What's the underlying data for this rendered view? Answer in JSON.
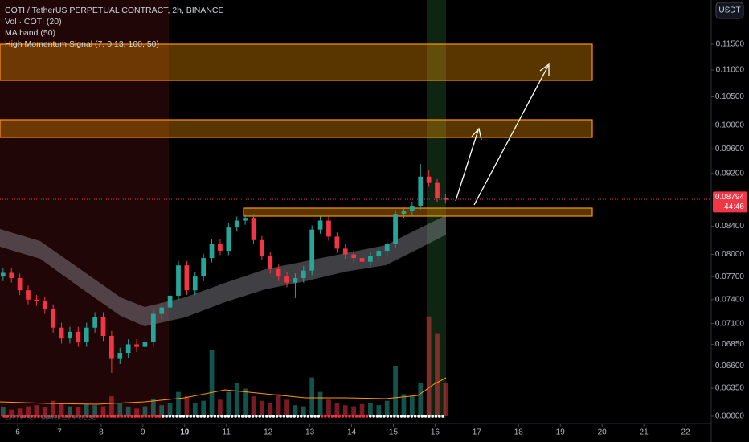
{
  "chart_data": {
    "type": "candlestick",
    "title": "COTI / TetherUS PERPETUAL CONTRACT, 2h, BINANCE",
    "indicators": [
      "Vol · COTI (20)",
      "MA band (50)",
      "High Momentum Signal (7, 0.13, 100, 50)"
    ],
    "currency_button": "USDT",
    "watermark": "CRYPTO · MARKET PULSE",
    "log_scale": true,
    "grid": false,
    "up_color": "#26a69a",
    "down_color": "#f23645",
    "x": [
      5.65,
      5.85,
      6.05,
      6.25,
      6.45,
      6.65,
      6.85,
      7.05,
      7.25,
      7.45,
      7.65,
      7.85,
      8.05,
      8.25,
      8.45,
      8.65,
      8.85,
      9.05,
      9.25,
      9.45,
      9.65,
      9.85,
      10.05,
      10.25,
      10.45,
      10.65,
      10.85,
      11.05,
      11.25,
      11.45,
      11.65,
      11.85,
      12.05,
      12.25,
      12.45,
      12.65,
      12.85,
      13.05,
      13.25,
      13.45,
      13.65,
      13.85,
      14.05,
      14.25,
      14.45,
      14.65,
      14.85,
      15.05,
      15.25,
      15.45,
      15.65,
      15.85,
      16.05,
      16.25
    ],
    "open": [
      0.077,
      0.0775,
      0.0768,
      0.0752,
      0.074,
      0.0738,
      0.0728,
      0.0705,
      0.0692,
      0.07,
      0.0688,
      0.0705,
      0.0718,
      0.0695,
      0.0668,
      0.0675,
      0.0685,
      0.0682,
      0.0688,
      0.0722,
      0.073,
      0.0745,
      0.0785,
      0.0752,
      0.077,
      0.0795,
      0.0815,
      0.0805,
      0.0838,
      0.0848,
      0.0852,
      0.082,
      0.0798,
      0.078,
      0.077,
      0.0762,
      0.0768,
      0.0778,
      0.0835,
      0.0848,
      0.0825,
      0.0808,
      0.08,
      0.0795,
      0.079,
      0.0798,
      0.0805,
      0.0815,
      0.0858,
      0.0862,
      0.087,
      0.0915,
      0.0905,
      0.0882
    ],
    "high": [
      0.0781,
      0.0781,
      0.0774,
      0.0758,
      0.0746,
      0.0744,
      0.0734,
      0.0711,
      0.0706,
      0.0706,
      0.0711,
      0.0724,
      0.0724,
      0.0701,
      0.0681,
      0.0691,
      0.0691,
      0.0694,
      0.0728,
      0.0736,
      0.0751,
      0.0791,
      0.0791,
      0.0776,
      0.0801,
      0.0821,
      0.0821,
      0.0844,
      0.0854,
      0.0858,
      0.0858,
      0.0826,
      0.0804,
      0.0786,
      0.0776,
      0.0774,
      0.0784,
      0.0841,
      0.0854,
      0.0854,
      0.0831,
      0.0814,
      0.0806,
      0.0801,
      0.0804,
      0.0811,
      0.0821,
      0.0864,
      0.0868,
      0.0876,
      0.0935,
      0.0925,
      0.0911,
      0.0888
    ],
    "low": [
      0.0764,
      0.0762,
      0.0746,
      0.0734,
      0.0732,
      0.0722,
      0.0699,
      0.0686,
      0.0686,
      0.0682,
      0.0682,
      0.0699,
      0.0689,
      0.0652,
      0.0662,
      0.0669,
      0.0676,
      0.0676,
      0.0682,
      0.0716,
      0.0724,
      0.0739,
      0.0746,
      0.0746,
      0.0764,
      0.0789,
      0.0799,
      0.0799,
      0.0832,
      0.0842,
      0.0814,
      0.0792,
      0.0774,
      0.0764,
      0.0756,
      0.0742,
      0.0762,
      0.0772,
      0.0829,
      0.0819,
      0.0802,
      0.0794,
      0.0789,
      0.0784,
      0.0784,
      0.0792,
      0.0799,
      0.0809,
      0.0852,
      0.0856,
      0.0864,
      0.0899,
      0.0876,
      0.0873
    ],
    "close": [
      0.0775,
      0.0768,
      0.0752,
      0.074,
      0.0738,
      0.0728,
      0.0705,
      0.0692,
      0.07,
      0.0688,
      0.0705,
      0.0718,
      0.0695,
      0.0668,
      0.0675,
      0.0685,
      0.0682,
      0.0688,
      0.0722,
      0.073,
      0.0745,
      0.0785,
      0.0752,
      0.077,
      0.0795,
      0.0815,
      0.0805,
      0.0838,
      0.0848,
      0.0852,
      0.082,
      0.0798,
      0.078,
      0.077,
      0.0762,
      0.0768,
      0.0778,
      0.0835,
      0.0848,
      0.0825,
      0.0808,
      0.08,
      0.0795,
      0.079,
      0.0798,
      0.0805,
      0.0815,
      0.0858,
      0.0862,
      0.087,
      0.0915,
      0.0905,
      0.0882,
      0.0879
    ],
    "volume": [
      8,
      6,
      7,
      9,
      10,
      8,
      14,
      12,
      9,
      8,
      11,
      10,
      9,
      18,
      12,
      8,
      7,
      9,
      16,
      10,
      12,
      22,
      18,
      12,
      14,
      60,
      15,
      22,
      30,
      25,
      18,
      14,
      12,
      20,
      15,
      10,
      9,
      35,
      22,
      15,
      12,
      10,
      9,
      11,
      12,
      10,
      14,
      45,
      20,
      18,
      30,
      90,
      75,
      30
    ],
    "volume_ylim": [
      0,
      100
    ],
    "volume_yticks": [
      {
        "value": 0,
        "label": "0.00000"
      }
    ],
    "xlim": [
      5.576,
      22.615
    ],
    "xticks": [
      6,
      7,
      8,
      9,
      10,
      11,
      12,
      13,
      14,
      15,
      16,
      17,
      18,
      19,
      20,
      21,
      22
    ],
    "ylim": [
      0.0605,
      0.1241
    ],
    "yticks": [
      {
        "value": 0.115,
        "label": "0.11500"
      },
      {
        "value": 0.11,
        "label": "0.11000"
      },
      {
        "value": 0.105,
        "label": "0.10500"
      },
      {
        "value": 0.1,
        "label": "0.10000"
      },
      {
        "value": 0.096,
        "label": "0.09600"
      },
      {
        "value": 0.092,
        "label": "0.09200"
      },
      {
        "value": 0.084,
        "label": "0.08400"
      },
      {
        "value": 0.08,
        "label": "0.08000"
      },
      {
        "value": 0.077,
        "label": "0.07700"
      },
      {
        "value": 0.074,
        "label": "0.07400"
      },
      {
        "value": 0.071,
        "label": "0.07100"
      },
      {
        "value": 0.0685,
        "label": "0.06850"
      },
      {
        "value": 0.066,
        "label": "0.06600"
      },
      {
        "value": 0.0635,
        "label": "0.06350"
      }
    ],
    "last_price": 0.08794,
    "countdown": "44:46"
  }
}
